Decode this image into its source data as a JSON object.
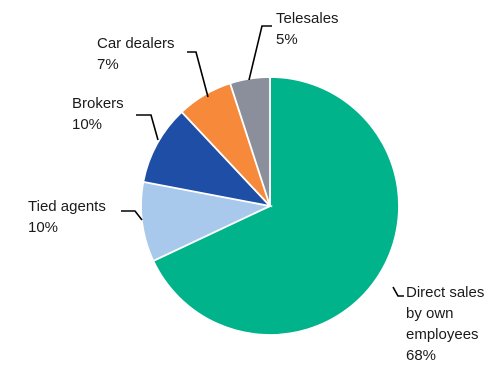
{
  "chart_data": {
    "type": "pie",
    "title": "",
    "slices": [
      {
        "label": "Direct sales by own employees",
        "label_lines": [
          "Direct sales",
          "by own",
          "employees"
        ],
        "value_label": "68%",
        "value": 68,
        "color": "#00b38a"
      },
      {
        "label": "Tied agents",
        "label_lines": [
          "Tied agents"
        ],
        "value_label": "10%",
        "value": 10,
        "color": "#a8c9ec"
      },
      {
        "label": "Brokers",
        "label_lines": [
          "Brokers"
        ],
        "value_label": "10%",
        "value": 10,
        "color": "#1f4ea6"
      },
      {
        "label": "Car dealers",
        "label_lines": [
          "Car dealers"
        ],
        "value_label": "7%",
        "value": 7,
        "color": "#f68a3a"
      },
      {
        "label": "Telesales",
        "label_lines": [
          "Telesales"
        ],
        "value_label": "5%",
        "value": 5,
        "color": "#8a8f9b"
      }
    ],
    "start": "12 o'clock",
    "direction": "clockwise"
  }
}
